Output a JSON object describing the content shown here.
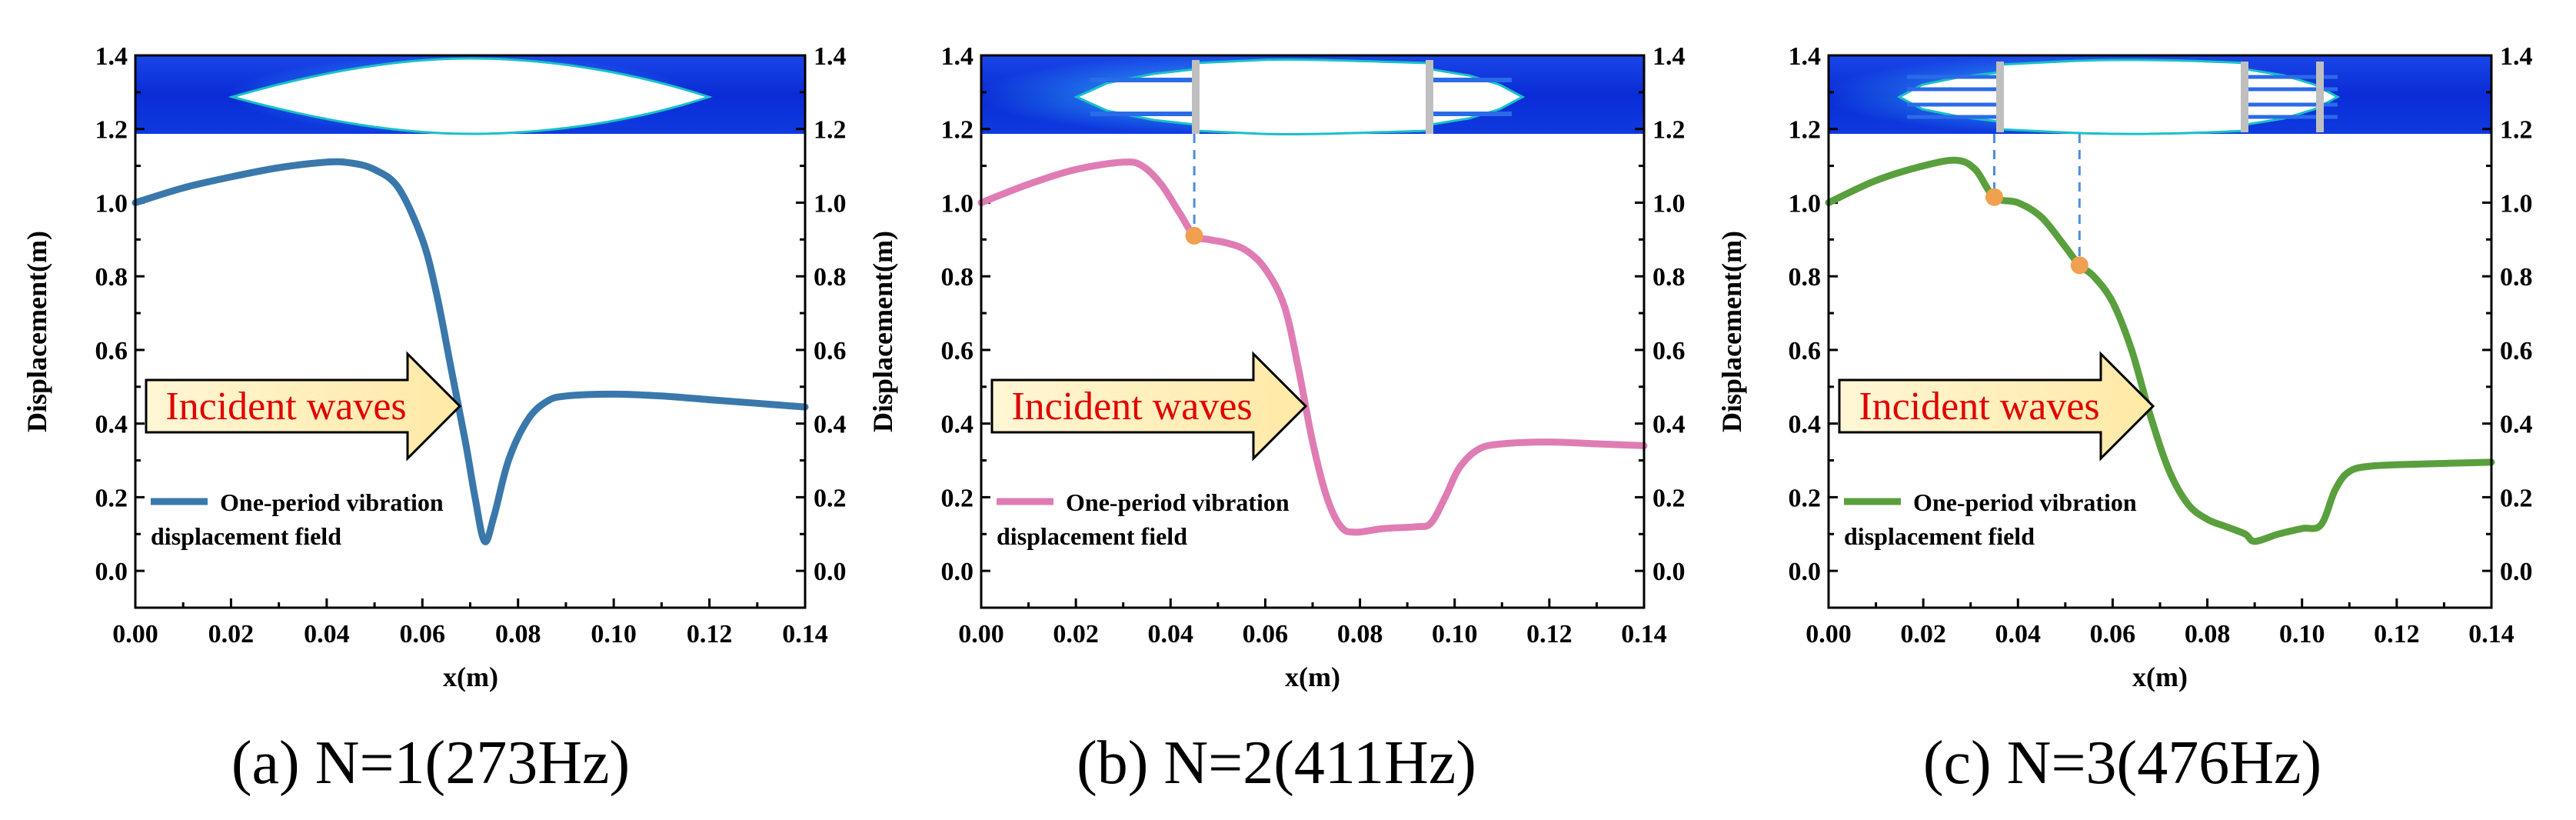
{
  "chart_data": [
    {
      "type": "line",
      "caption": "(a)  N=1(273Hz)",
      "xlabel": "x(m)",
      "ylabel": "Displacement(m)",
      "xlim": [
        0,
        0.14
      ],
      "ylim": [
        -0.1,
        1.4
      ],
      "xticks": [
        "0.00",
        "0.02",
        "0.04",
        "0.06",
        "0.08",
        "0.10",
        "0.12",
        "0.14"
      ],
      "yticks": [
        "0.0",
        "0.2",
        "0.4",
        "0.6",
        "0.8",
        "1.0",
        "1.2",
        "1.4"
      ],
      "annotation": "Incident waves",
      "legend": [
        "One-period vibration",
        "displacement field"
      ],
      "series": [
        {
          "name": "One-period vibration displacement field",
          "color": "#3a78ab",
          "points": [
            [
              0.0,
              1.0
            ],
            [
              0.01,
              1.04
            ],
            [
              0.02,
              1.07
            ],
            [
              0.03,
              1.095
            ],
            [
              0.04,
              1.11
            ],
            [
              0.045,
              1.108
            ],
            [
              0.05,
              1.09
            ],
            [
              0.055,
              1.04
            ],
            [
              0.06,
              0.9
            ],
            [
              0.063,
              0.75
            ],
            [
              0.066,
              0.55
            ],
            [
              0.069,
              0.35
            ],
            [
              0.071,
              0.2
            ],
            [
              0.073,
              0.08
            ],
            [
              0.075,
              0.15
            ],
            [
              0.078,
              0.3
            ],
            [
              0.082,
              0.41
            ],
            [
              0.086,
              0.46
            ],
            [
              0.09,
              0.475
            ],
            [
              0.1,
              0.48
            ],
            [
              0.11,
              0.475
            ],
            [
              0.12,
              0.465
            ],
            [
              0.13,
              0.455
            ],
            [
              0.14,
              0.445
            ]
          ]
        }
      ],
      "markers": []
    },
    {
      "type": "line",
      "caption": "(b)  N=2(411Hz)",
      "xlabel": "x(m)",
      "ylabel": "Displacement(m)",
      "xlim": [
        0,
        0.14
      ],
      "ylim": [
        -0.1,
        1.4
      ],
      "xticks": [
        "0.00",
        "0.02",
        "0.04",
        "0.06",
        "0.08",
        "0.10",
        "0.12",
        "0.14"
      ],
      "yticks": [
        "0.0",
        "0.2",
        "0.4",
        "0.6",
        "0.8",
        "1.0",
        "1.2",
        "1.4"
      ],
      "annotation": "Incident waves",
      "legend": [
        "One-period vibration",
        "displacement field"
      ],
      "series": [
        {
          "name": "One-period vibration displacement field",
          "color": "#e07cb4",
          "points": [
            [
              0.0,
              1.0
            ],
            [
              0.01,
              1.05
            ],
            [
              0.02,
              1.09
            ],
            [
              0.03,
              1.11
            ],
            [
              0.034,
              1.1
            ],
            [
              0.038,
              1.05
            ],
            [
              0.042,
              0.97
            ],
            [
              0.045,
              0.91
            ],
            [
              0.048,
              0.9
            ],
            [
              0.052,
              0.89
            ],
            [
              0.056,
              0.87
            ],
            [
              0.06,
              0.82
            ],
            [
              0.064,
              0.72
            ],
            [
              0.067,
              0.55
            ],
            [
              0.07,
              0.35
            ],
            [
              0.073,
              0.2
            ],
            [
              0.076,
              0.12
            ],
            [
              0.079,
              0.105
            ],
            [
              0.085,
              0.115
            ],
            [
              0.092,
              0.12
            ],
            [
              0.095,
              0.13
            ],
            [
              0.098,
              0.2
            ],
            [
              0.101,
              0.28
            ],
            [
              0.105,
              0.33
            ],
            [
              0.11,
              0.345
            ],
            [
              0.12,
              0.35
            ],
            [
              0.13,
              0.345
            ],
            [
              0.14,
              0.34
            ]
          ]
        }
      ],
      "markers": [
        [
          0.045,
          0.91
        ]
      ]
    },
    {
      "type": "line",
      "caption": "(c)  N=3(476Hz)",
      "xlabel": "x(m)",
      "ylabel": "Displacement(m)",
      "xlim": [
        0,
        0.14
      ],
      "ylim": [
        -0.1,
        1.4
      ],
      "xticks": [
        "0.00",
        "0.02",
        "0.04",
        "0.06",
        "0.08",
        "0.10",
        "0.12",
        "0.14"
      ],
      "yticks": [
        "0.0",
        "0.2",
        "0.4",
        "0.6",
        "0.8",
        "1.0",
        "1.2",
        "1.4"
      ],
      "annotation": "Incident waves",
      "legend": [
        "One-period vibration",
        "displacement field"
      ],
      "series": [
        {
          "name": "One-period vibration displacement field",
          "color": "#5a9f3e",
          "points": [
            [
              0.0,
              1.0
            ],
            [
              0.01,
              1.06
            ],
            [
              0.02,
              1.1
            ],
            [
              0.027,
              1.115
            ],
            [
              0.031,
              1.09
            ],
            [
              0.035,
              1.015
            ],
            [
              0.04,
              1.0
            ],
            [
              0.045,
              0.96
            ],
            [
              0.05,
              0.88
            ],
            [
              0.053,
              0.83
            ],
            [
              0.056,
              0.8
            ],
            [
              0.06,
              0.73
            ],
            [
              0.064,
              0.6
            ],
            [
              0.068,
              0.42
            ],
            [
              0.072,
              0.27
            ],
            [
              0.076,
              0.18
            ],
            [
              0.08,
              0.14
            ],
            [
              0.084,
              0.12
            ],
            [
              0.088,
              0.1
            ],
            [
              0.09,
              0.08
            ],
            [
              0.095,
              0.1
            ],
            [
              0.1,
              0.115
            ],
            [
              0.104,
              0.125
            ],
            [
              0.107,
              0.22
            ],
            [
              0.11,
              0.27
            ],
            [
              0.115,
              0.285
            ],
            [
              0.125,
              0.29
            ],
            [
              0.14,
              0.295
            ]
          ]
        }
      ],
      "markers": [
        [
          0.035,
          1.015
        ],
        [
          0.053,
          0.83
        ]
      ]
    }
  ]
}
